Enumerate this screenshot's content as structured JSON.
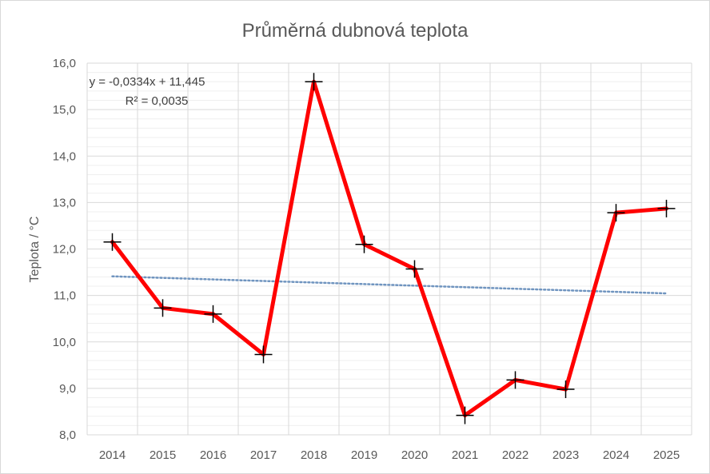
{
  "chart_data": {
    "type": "line",
    "title": "Průměrná dubnová teplota",
    "xlabel": "",
    "ylabel": "Teplota / °C",
    "categories": [
      "2014",
      "2015",
      "2016",
      "2017",
      "2018",
      "2019",
      "2020",
      "2021",
      "2022",
      "2023",
      "2024",
      "2025"
    ],
    "series": [
      {
        "values": [
          12.15,
          10.73,
          10.6,
          9.73,
          15.6,
          12.1,
          11.57,
          8.42,
          9.18,
          8.98,
          12.78,
          12.87
        ],
        "color": "#ff0000",
        "marker": "plus"
      }
    ],
    "trendline": {
      "type": "linear",
      "slope": -0.0334,
      "intercept": 11.445,
      "equation": "y = -0,0334x + 11,445",
      "r_squared": "R² = 0,0035",
      "color": "#6f94bf",
      "style": "dotted"
    },
    "ylim": [
      8.0,
      16.0
    ],
    "y_major_step": 1.0,
    "y_minor_step": 0.2,
    "y_tick_labels": [
      "8,0",
      "9,0",
      "10,0",
      "11,0",
      "12,0",
      "13,0",
      "14,0",
      "15,0",
      "16,0"
    ],
    "grid": true,
    "legend": "none"
  }
}
